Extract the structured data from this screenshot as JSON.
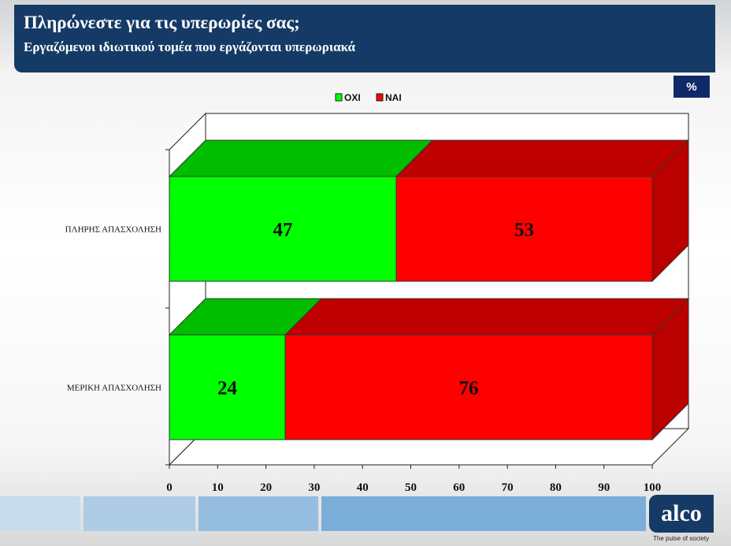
{
  "header": {
    "title": "Πληρώνεστε για τις υπερωρίες σας;",
    "subtitle": "Εργαζόμενοι ιδιωτικού τομέα που εργάζονται υπερωριακά"
  },
  "unit_label": "%",
  "logo": {
    "text": "alco",
    "tagline": "The pulse of society"
  },
  "colors": {
    "oxi_front": "#00ff00",
    "oxi_top": "#00bd00",
    "nai_front": "#ff0000",
    "nai_top": "#bf0000",
    "nai_side": "#bb0000",
    "header_bg": "#153a66"
  },
  "chart_data": {
    "type": "bar",
    "orientation": "horizontal",
    "stacked": true,
    "three_d": true,
    "categories": [
      "ΠΛΗΡΗΣ ΑΠΑΣΧΟΛΗΣΗ",
      "ΜΕΡΙΚΗ ΑΠΑΣΧΟΛΗΣΗ"
    ],
    "series": [
      {
        "name": "ΟΧΙ",
        "values": [
          47,
          24
        ]
      },
      {
        "name": "ΝΑΙ",
        "values": [
          53,
          76
        ]
      }
    ],
    "xlim": [
      0,
      100
    ],
    "xticks": [
      0,
      10,
      20,
      30,
      40,
      50,
      60,
      70,
      80,
      90,
      100
    ],
    "legend_position": "top-center",
    "grid": false
  }
}
